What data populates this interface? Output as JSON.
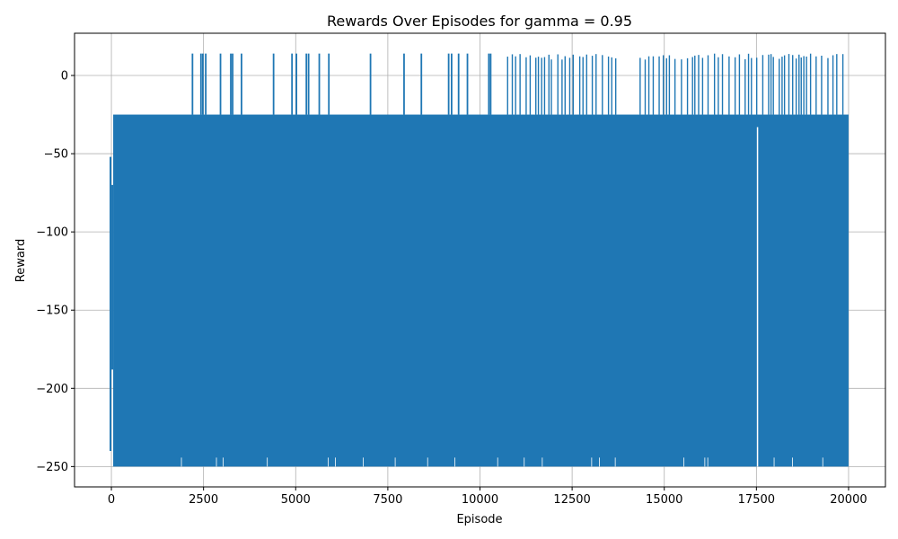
{
  "chart_data": {
    "type": "line",
    "title": "Rewards Over Episodes for gamma = 0.95",
    "xlabel": "Episode",
    "ylabel": "Reward",
    "xlim": [
      -1000,
      21000
    ],
    "ylim": [
      -263,
      27
    ],
    "grid": true,
    "line_color": "#1f77b4",
    "x_ticks": [
      0,
      2500,
      5000,
      7500,
      10000,
      12500,
      15000,
      17500,
      20000
    ],
    "y_ticks": [
      0,
      -50,
      -100,
      -150,
      -200,
      -250
    ],
    "series": [
      {
        "name": "reward",
        "episodes": 20000,
        "band_lower": -250,
        "band_upper": -25,
        "early_range": [
          -240,
          -52
        ],
        "peak_value_typical": 14,
        "peak_episodes_early": [
          2200,
          2430,
          2480,
          2560,
          2960,
          3240,
          3290,
          3530,
          4400,
          4900,
          5020,
          5290,
          5350,
          5640,
          5900,
          7030,
          7940,
          8410,
          9150,
          9230,
          9420,
          9660,
          10240,
          10290
        ],
        "peak_episodes_dense_start": 10750,
        "peak_episodes_dense_end": 19880,
        "gap_episode": 17530
      }
    ]
  }
}
